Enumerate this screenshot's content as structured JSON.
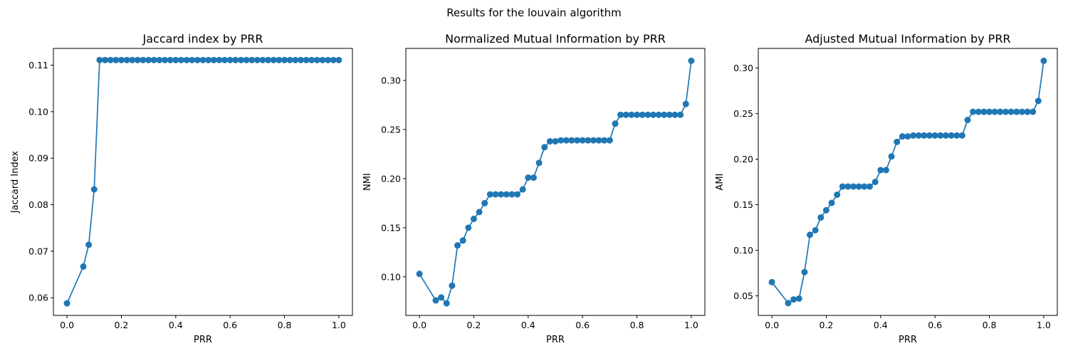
{
  "figure_title": "Results for the louvain algorithm",
  "color": "#1f77b4",
  "chart_data": [
    {
      "type": "line",
      "title": "Jaccard index by PRR",
      "xlabel": "PRR",
      "ylabel": "Jaccard Index",
      "xlim": [
        -0.05,
        1.05
      ],
      "ylim": [
        0.0562,
        0.1136
      ],
      "x_ticks": [
        0.0,
        0.2,
        0.4,
        0.6,
        0.8,
        1.0
      ],
      "x_tick_labels": [
        "0.0",
        "0.2",
        "0.4",
        "0.6",
        "0.8",
        "1.0"
      ],
      "y_ticks": [
        0.06,
        0.07,
        0.08,
        0.09,
        0.1,
        0.11
      ],
      "y_tick_labels": [
        "0.06",
        "0.07",
        "0.08",
        "0.09",
        "0.10",
        "0.11"
      ],
      "markers": true,
      "x": [
        0.0,
        0.06,
        0.08,
        0.1,
        0.12,
        0.14,
        0.16,
        0.18,
        0.2,
        0.22,
        0.24,
        0.26,
        0.28,
        0.3,
        0.32,
        0.34,
        0.36,
        0.38,
        0.4,
        0.42,
        0.44,
        0.46,
        0.48,
        0.5,
        0.52,
        0.54,
        0.56,
        0.58,
        0.6,
        0.62,
        0.64,
        0.66,
        0.68,
        0.7,
        0.72,
        0.74,
        0.76,
        0.78,
        0.8,
        0.82,
        0.84,
        0.86,
        0.88,
        0.9,
        0.92,
        0.94,
        0.96,
        0.98,
        1.0
      ],
      "y": [
        0.0588,
        0.0667,
        0.0714,
        0.0833,
        0.1111,
        0.1111,
        0.1111,
        0.1111,
        0.1111,
        0.1111,
        0.1111,
        0.1111,
        0.1111,
        0.1111,
        0.1111,
        0.1111,
        0.1111,
        0.1111,
        0.1111,
        0.1111,
        0.1111,
        0.1111,
        0.1111,
        0.1111,
        0.1111,
        0.1111,
        0.1111,
        0.1111,
        0.1111,
        0.1111,
        0.1111,
        0.1111,
        0.1111,
        0.1111,
        0.1111,
        0.1111,
        0.1111,
        0.1111,
        0.1111,
        0.1111,
        0.1111,
        0.1111,
        0.1111,
        0.1111,
        0.1111,
        0.1111,
        0.1111,
        0.1111,
        0.1111
      ]
    },
    {
      "type": "line",
      "title": "Normalized Mutual Information by PRR",
      "xlabel": "PRR",
      "ylabel": "NMI",
      "xlim": [
        -0.05,
        1.05
      ],
      "ylim": [
        0.0607,
        0.3326
      ],
      "x_ticks": [
        0.0,
        0.2,
        0.4,
        0.6,
        0.8,
        1.0
      ],
      "x_tick_labels": [
        "0.0",
        "0.2",
        "0.4",
        "0.6",
        "0.8",
        "1.0"
      ],
      "y_ticks": [
        0.1,
        0.15,
        0.2,
        0.25,
        0.3
      ],
      "y_tick_labels": [
        "0.10",
        "0.15",
        "0.20",
        "0.25",
        "0.30"
      ],
      "markers": true,
      "x": [
        0.0,
        0.06,
        0.08,
        0.1,
        0.12,
        0.14,
        0.16,
        0.18,
        0.2,
        0.22,
        0.24,
        0.26,
        0.28,
        0.3,
        0.32,
        0.34,
        0.36,
        0.38,
        0.4,
        0.42,
        0.44,
        0.46,
        0.48,
        0.5,
        0.52,
        0.54,
        0.56,
        0.58,
        0.6,
        0.62,
        0.64,
        0.66,
        0.68,
        0.7,
        0.72,
        0.74,
        0.76,
        0.78,
        0.8,
        0.82,
        0.84,
        0.86,
        0.88,
        0.9,
        0.92,
        0.94,
        0.96,
        0.98,
        1.0
      ],
      "y": [
        0.103,
        0.076,
        0.079,
        0.073,
        0.091,
        0.132,
        0.137,
        0.15,
        0.159,
        0.166,
        0.175,
        0.184,
        0.184,
        0.184,
        0.184,
        0.184,
        0.184,
        0.189,
        0.201,
        0.201,
        0.216,
        0.232,
        0.238,
        0.238,
        0.239,
        0.239,
        0.239,
        0.239,
        0.239,
        0.239,
        0.239,
        0.239,
        0.239,
        0.239,
        0.256,
        0.265,
        0.265,
        0.265,
        0.265,
        0.265,
        0.265,
        0.265,
        0.265,
        0.265,
        0.265,
        0.265,
        0.265,
        0.276,
        0.32
      ]
    },
    {
      "type": "line",
      "title": "Adjusted Mutual Information by PRR",
      "xlabel": "PRR",
      "ylabel": "AMI",
      "xlim": [
        -0.05,
        1.05
      ],
      "ylim": [
        0.0285,
        0.3216
      ],
      "x_ticks": [
        0.0,
        0.2,
        0.4,
        0.6,
        0.8,
        1.0
      ],
      "x_tick_labels": [
        "0.0",
        "0.2",
        "0.4",
        "0.6",
        "0.8",
        "1.0"
      ],
      "y_ticks": [
        0.05,
        0.1,
        0.15,
        0.2,
        0.25,
        0.3
      ],
      "y_tick_labels": [
        "0.05",
        "0.10",
        "0.15",
        "0.20",
        "0.25",
        "0.30"
      ],
      "markers": true,
      "x": [
        0.0,
        0.06,
        0.08,
        0.1,
        0.12,
        0.14,
        0.16,
        0.18,
        0.2,
        0.22,
        0.24,
        0.26,
        0.28,
        0.3,
        0.32,
        0.34,
        0.36,
        0.38,
        0.4,
        0.42,
        0.44,
        0.46,
        0.48,
        0.5,
        0.52,
        0.54,
        0.56,
        0.58,
        0.6,
        0.62,
        0.64,
        0.66,
        0.68,
        0.7,
        0.72,
        0.74,
        0.76,
        0.78,
        0.8,
        0.82,
        0.84,
        0.86,
        0.88,
        0.9,
        0.92,
        0.94,
        0.96,
        0.98,
        1.0
      ],
      "y": [
        0.065,
        0.042,
        0.046,
        0.047,
        0.076,
        0.117,
        0.122,
        0.136,
        0.144,
        0.152,
        0.161,
        0.17,
        0.17,
        0.17,
        0.17,
        0.17,
        0.17,
        0.175,
        0.188,
        0.188,
        0.203,
        0.219,
        0.225,
        0.225,
        0.226,
        0.226,
        0.226,
        0.226,
        0.226,
        0.226,
        0.226,
        0.226,
        0.226,
        0.226,
        0.243,
        0.252,
        0.252,
        0.252,
        0.252,
        0.252,
        0.252,
        0.252,
        0.252,
        0.252,
        0.252,
        0.252,
        0.252,
        0.264,
        0.308
      ]
    }
  ]
}
